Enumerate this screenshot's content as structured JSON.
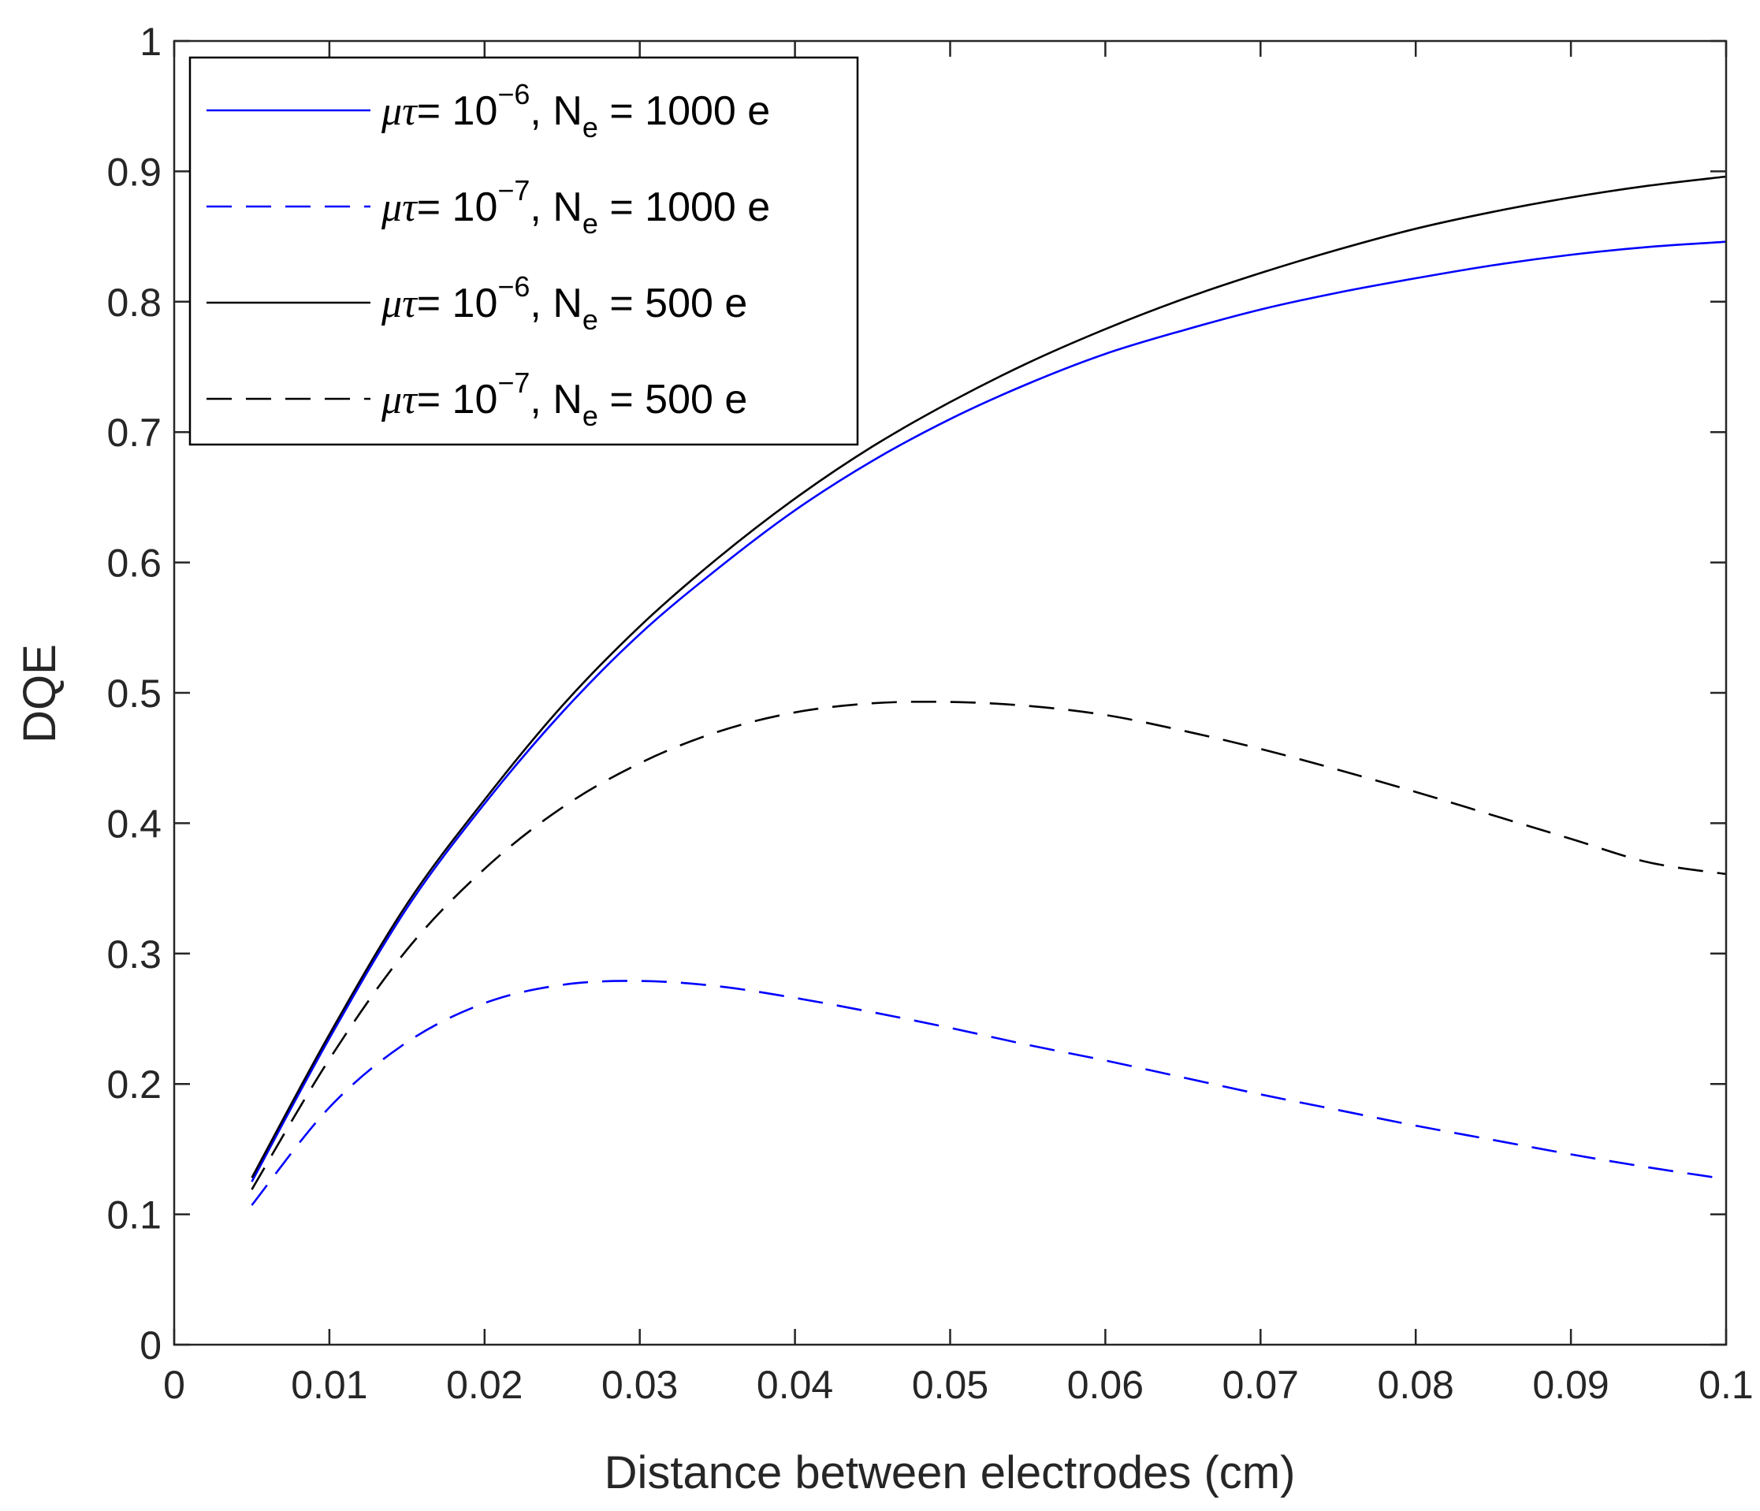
{
  "chart_data": {
    "type": "line",
    "title": "",
    "xlabel": "Distance between electrodes (cm)",
    "ylabel": "DQE",
    "xlim": [
      0,
      0.1
    ],
    "ylim": [
      0,
      1
    ],
    "xticks": [
      0,
      0.01,
      0.02,
      0.03,
      0.04,
      0.05,
      0.06,
      0.07,
      0.08,
      0.09,
      0.1
    ],
    "xtick_labels": [
      "0",
      "0.01",
      "0.02",
      "0.03",
      "0.04",
      "0.05",
      "0.06",
      "0.07",
      "0.08",
      "0.09",
      "0.1"
    ],
    "yticks": [
      0,
      0.1,
      0.2,
      0.3,
      0.4,
      0.5,
      0.6,
      0.7,
      0.8,
      0.9,
      1
    ],
    "ytick_labels": [
      "0",
      "0.1",
      "0.2",
      "0.3",
      "0.4",
      "0.5",
      "0.6",
      "0.7",
      "0.8",
      "0.9",
      "1"
    ],
    "grid": false,
    "legend_position": "top-left",
    "x": [
      0.005,
      0.01,
      0.015,
      0.02,
      0.025,
      0.03,
      0.035,
      0.04,
      0.045,
      0.05,
      0.055,
      0.06,
      0.065,
      0.07,
      0.075,
      0.08,
      0.085,
      0.09,
      0.095,
      0.1
    ],
    "series": [
      {
        "label_parts": {
          "mu_tau": "μτ",
          "eq": "= 10",
          "exp": "−6",
          "mid": ", N",
          "sub": "e",
          "rest": " = 1000 e"
        },
        "color": "#0000ff",
        "dash": "solid",
        "values": [
          0.125,
          0.235,
          0.335,
          0.415,
          0.485,
          0.545,
          0.595,
          0.64,
          0.678,
          0.71,
          0.737,
          0.76,
          0.778,
          0.794,
          0.807,
          0.818,
          0.828,
          0.836,
          0.842,
          0.846
        ]
      },
      {
        "label_parts": {
          "mu_tau": "μτ",
          "eq": "= 10",
          "exp": "−7",
          "mid": ", N",
          "sub": "e",
          "rest": " = 1000 e"
        },
        "color": "#0000ff",
        "dash": "dashed",
        "values": [
          0.107,
          0.182,
          0.232,
          0.262,
          0.276,
          0.279,
          0.275,
          0.266,
          0.255,
          0.243,
          0.23,
          0.218,
          0.205,
          0.192,
          0.18,
          0.168,
          0.157,
          0.146,
          0.136,
          0.127
        ]
      },
      {
        "label_parts": {
          "mu_tau": "μτ",
          "eq": "= 10",
          "exp": "−6",
          "mid": ", N",
          "sub": "e",
          "rest": " = 500 e"
        },
        "color": "#000000",
        "dash": "solid",
        "values": [
          0.128,
          0.238,
          0.338,
          0.418,
          0.49,
          0.551,
          0.603,
          0.649,
          0.689,
          0.723,
          0.753,
          0.779,
          0.802,
          0.822,
          0.84,
          0.856,
          0.869,
          0.88,
          0.889,
          0.896
        ]
      },
      {
        "label_parts": {
          "mu_tau": "μτ",
          "eq": "= 10",
          "exp": "−7",
          "mid": ", N",
          "sub": "e",
          "rest": " = 500 e"
        },
        "color": "#000000",
        "dash": "dashed",
        "values": [
          0.119,
          0.219,
          0.303,
          0.365,
          0.412,
          0.446,
          0.47,
          0.485,
          0.492,
          0.493,
          0.49,
          0.483,
          0.471,
          0.457,
          0.441,
          0.424,
          0.406,
          0.388,
          0.37,
          0.361
        ]
      }
    ]
  }
}
